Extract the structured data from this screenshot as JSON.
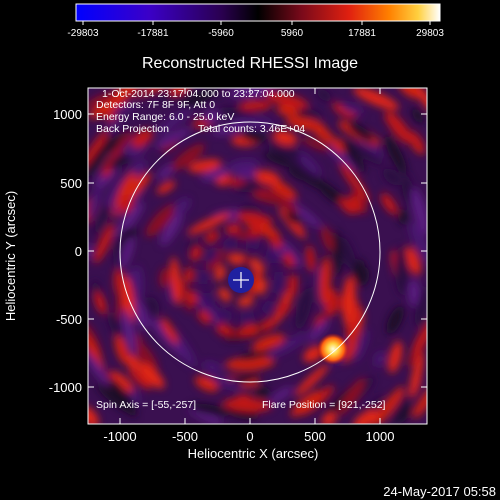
{
  "colorbar": {
    "ticks": [
      "-29803",
      "-17881",
      "-5960",
      "5960",
      "17881",
      "29803"
    ],
    "stops": [
      "#0000ff",
      "#3b00c8",
      "#2a0050",
      "#000000",
      "#7a0a1a",
      "#e02010",
      "#ff8000",
      "#ffd040",
      "#ffffff"
    ]
  },
  "title": "Reconstructed RHESSI Image",
  "annotations": {
    "line1": "1-Oct-2014 23:17:04.000 to 23:27:04.000",
    "line2": "Detectors: 7F 8F 9F, Att 0",
    "line3": "Energy Range: 6.0 - 25.0 keV",
    "line4a": "Back Projection",
    "line4b": "Total counts: 3.46E+04",
    "spin_axis": "Spin Axis = [-55,-257]",
    "flare_position": "Flare Position = [921,-252]"
  },
  "axes": {
    "xlabel": "Heliocentric X (arcsec)",
    "ylabel": "Heliocentric Y (arcsec)",
    "xticks": [
      "-1000",
      "-500",
      "0",
      "500",
      "1000"
    ],
    "yticks": [
      "1000",
      "500",
      "0",
      "-500",
      "-1000"
    ]
  },
  "timestamp": "24-May-2017 05:58"
}
